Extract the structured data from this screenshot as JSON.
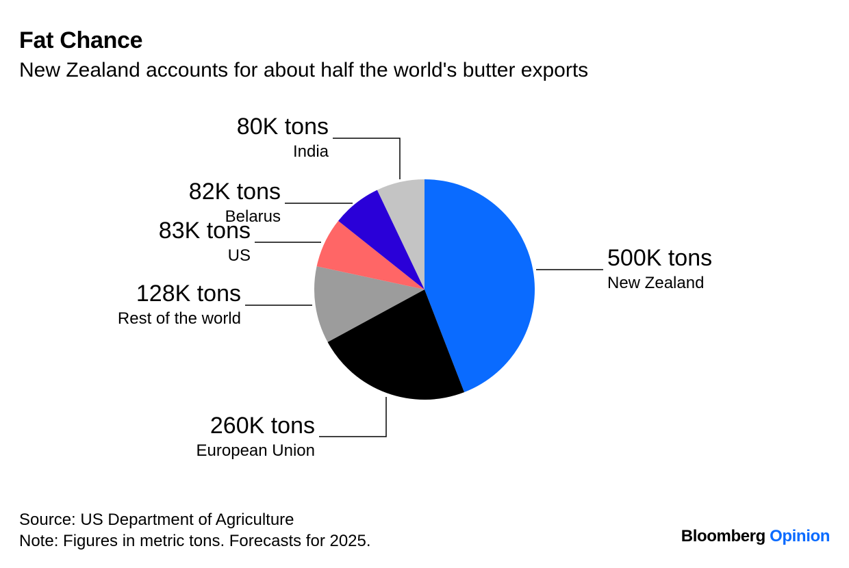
{
  "header": {
    "title": "Fat Chance",
    "subtitle": "New Zealand accounts for about half the world's butter exports"
  },
  "chart_data": {
    "type": "pie",
    "unit": "tons",
    "slices": [
      {
        "label": "New Zealand",
        "value": 500000,
        "value_label": "500K tons",
        "color": "#0a6bff"
      },
      {
        "label": "European Union",
        "value": 260000,
        "value_label": "260K tons",
        "color": "#000000"
      },
      {
        "label": "Rest of the world",
        "value": 128000,
        "value_label": "128K tons",
        "color": "#9c9c9c"
      },
      {
        "label": "US",
        "value": 83000,
        "value_label": "83K tons",
        "color": "#ff6666"
      },
      {
        "label": "Belarus",
        "value": 82000,
        "value_label": "82K tons",
        "color": "#2a00d8"
      },
      {
        "label": "India",
        "value": 80000,
        "value_label": "80K tons",
        "color": "#c4c4c4"
      }
    ],
    "start_angle": "12 o'clock",
    "direction": "clockwise"
  },
  "footer": {
    "source": "Source: US Department of Agriculture",
    "note": "Note: Figures in metric tons. Forecasts for 2025."
  },
  "brand": {
    "name": "Bloomberg",
    "section": "Opinion",
    "section_color": "#0a6bff"
  }
}
